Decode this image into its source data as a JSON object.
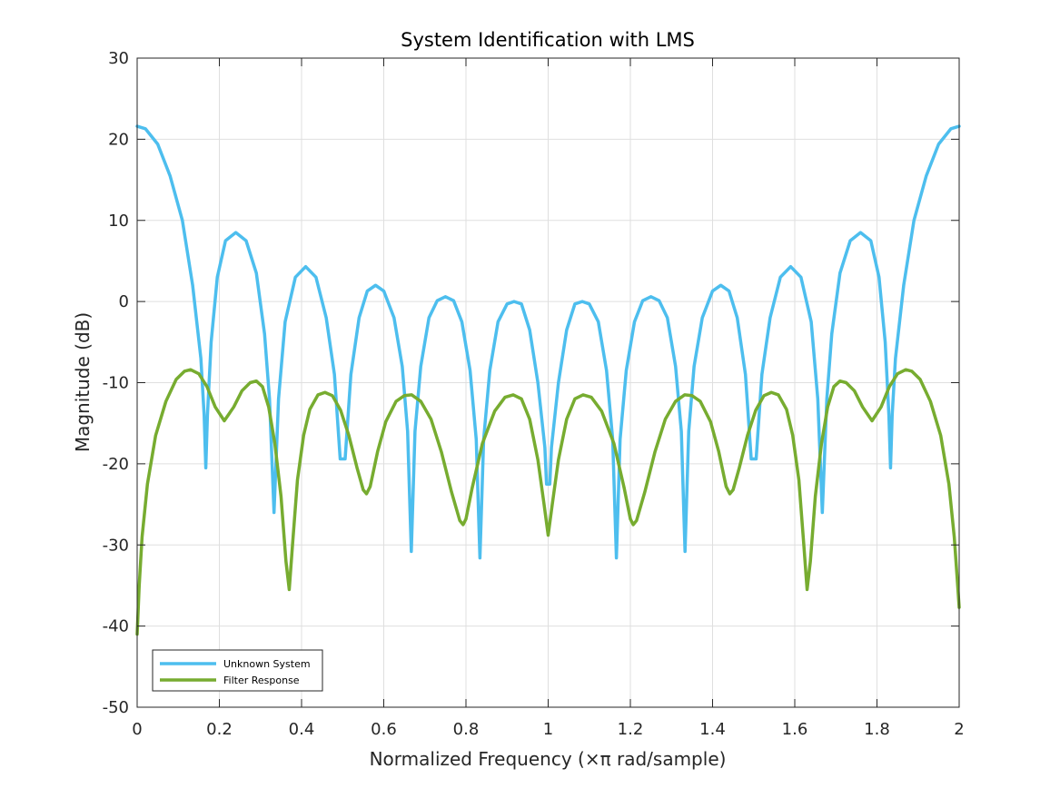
{
  "chart_data": {
    "type": "line",
    "title": "System Identification with LMS",
    "xlabel": "Normalized Frequency (×π rad/sample)",
    "ylabel": "Magnitude (dB)",
    "xlim": [
      0,
      2
    ],
    "ylim": [
      -50,
      30
    ],
    "grid": true,
    "legend_position": "bottom-left",
    "x_ticks": [
      0,
      0.2,
      0.4,
      0.6,
      0.8,
      1,
      1.2,
      1.4,
      1.6,
      1.8,
      2
    ],
    "x_tick_labels": [
      "0",
      "0.2",
      "0.4",
      "0.6",
      "0.8",
      "1",
      "1.2",
      "1.4",
      "1.6",
      "1.8",
      "2"
    ],
    "y_ticks": [
      -50,
      -40,
      -30,
      -20,
      -10,
      0,
      10,
      20,
      30
    ],
    "y_tick_labels": [
      "-50",
      "-40",
      "-30",
      "-20",
      "-10",
      "0",
      "10",
      "20",
      "30"
    ],
    "series": [
      {
        "name": "Unknown System",
        "color": "#4DBEEE",
        "points": [
          [
            0,
            21.6
          ],
          [
            0.02,
            21.3
          ],
          [
            0.05,
            19.4
          ],
          [
            0.08,
            15.5
          ],
          [
            0.11,
            10.0
          ],
          [
            0.135,
            2.0
          ],
          [
            0.155,
            -7.0
          ],
          [
            0.163,
            -14.0
          ],
          [
            0.167,
            -20.5
          ],
          [
            0.171,
            -14.0
          ],
          [
            0.18,
            -5.0
          ],
          [
            0.195,
            3.0
          ],
          [
            0.215,
            7.5
          ],
          [
            0.24,
            8.5
          ],
          [
            0.265,
            7.5
          ],
          [
            0.29,
            3.5
          ],
          [
            0.31,
            -4.0
          ],
          [
            0.322,
            -12.0
          ],
          [
            0.333,
            -26.0
          ],
          [
            0.344,
            -12.0
          ],
          [
            0.36,
            -2.5
          ],
          [
            0.385,
            3.0
          ],
          [
            0.41,
            4.3
          ],
          [
            0.435,
            3.0
          ],
          [
            0.46,
            -2.0
          ],
          [
            0.48,
            -9.0
          ],
          [
            0.494,
            -19.4
          ],
          [
            0.5,
            -19.4
          ],
          [
            0.506,
            -19.4
          ],
          [
            0.52,
            -9.0
          ],
          [
            0.54,
            -2.0
          ],
          [
            0.56,
            1.3
          ],
          [
            0.58,
            2.0
          ],
          [
            0.6,
            1.3
          ],
          [
            0.625,
            -2.0
          ],
          [
            0.645,
            -8.0
          ],
          [
            0.658,
            -16.0
          ],
          [
            0.667,
            -30.8
          ],
          [
            0.676,
            -16.0
          ],
          [
            0.69,
            -8.0
          ],
          [
            0.71,
            -2.0
          ],
          [
            0.73,
            0.1
          ],
          [
            0.75,
            0.6
          ],
          [
            0.77,
            0.1
          ],
          [
            0.79,
            -2.5
          ],
          [
            0.81,
            -8.5
          ],
          [
            0.825,
            -17.0
          ],
          [
            0.834,
            -31.6
          ],
          [
            0.843,
            -17.0
          ],
          [
            0.858,
            -8.5
          ],
          [
            0.878,
            -2.5
          ],
          [
            0.9,
            -0.3
          ],
          [
            0.917,
            0.0
          ],
          [
            0.935,
            -0.3
          ],
          [
            0.955,
            -3.5
          ],
          [
            0.975,
            -10.0
          ],
          [
            0.992,
            -18.0
          ],
          [
            0.996,
            -22.5
          ],
          [
            1.0,
            -22.5
          ],
          [
            1.004,
            -22.5
          ],
          [
            1.008,
            -18.0
          ],
          [
            1.025,
            -10.0
          ],
          [
            1.045,
            -3.5
          ],
          [
            1.065,
            -0.3
          ],
          [
            1.083,
            0.0
          ],
          [
            1.1,
            -0.3
          ],
          [
            1.122,
            -2.5
          ],
          [
            1.142,
            -8.5
          ],
          [
            1.157,
            -17.0
          ],
          [
            1.166,
            -31.6
          ],
          [
            1.175,
            -17.0
          ],
          [
            1.19,
            -8.5
          ],
          [
            1.21,
            -2.5
          ],
          [
            1.23,
            0.1
          ],
          [
            1.25,
            0.6
          ],
          [
            1.27,
            0.1
          ],
          [
            1.29,
            -2.0
          ],
          [
            1.31,
            -8.0
          ],
          [
            1.324,
            -16.0
          ],
          [
            1.333,
            -30.8
          ],
          [
            1.342,
            -16.0
          ],
          [
            1.355,
            -8.0
          ],
          [
            1.375,
            -2.0
          ],
          [
            1.4,
            1.3
          ],
          [
            1.42,
            2.0
          ],
          [
            1.44,
            1.3
          ],
          [
            1.46,
            -2.0
          ],
          [
            1.48,
            -9.0
          ],
          [
            1.494,
            -19.4
          ],
          [
            1.5,
            -19.4
          ],
          [
            1.506,
            -19.4
          ],
          [
            1.52,
            -9.0
          ],
          [
            1.54,
            -2.0
          ],
          [
            1.565,
            3.0
          ],
          [
            1.59,
            4.3
          ],
          [
            1.615,
            3.0
          ],
          [
            1.64,
            -2.5
          ],
          [
            1.656,
            -12.0
          ],
          [
            1.667,
            -26.0
          ],
          [
            1.678,
            -12.0
          ],
          [
            1.69,
            -4.0
          ],
          [
            1.71,
            3.5
          ],
          [
            1.735,
            7.5
          ],
          [
            1.76,
            8.5
          ],
          [
            1.785,
            7.5
          ],
          [
            1.805,
            3.0
          ],
          [
            1.82,
            -5.0
          ],
          [
            1.829,
            -14.0
          ],
          [
            1.833,
            -20.5
          ],
          [
            1.837,
            -14.0
          ],
          [
            1.845,
            -7.0
          ],
          [
            1.865,
            2.0
          ],
          [
            1.89,
            10.0
          ],
          [
            1.92,
            15.5
          ],
          [
            1.95,
            19.4
          ],
          [
            1.98,
            21.3
          ],
          [
            2.0,
            21.6
          ]
        ]
      },
      {
        "name": "Filter Response",
        "color": "#77AC30",
        "points": [
          [
            0,
            -41.0
          ],
          [
            0.005,
            -35.0
          ],
          [
            0.012,
            -29.0
          ],
          [
            0.025,
            -22.5
          ],
          [
            0.045,
            -16.5
          ],
          [
            0.07,
            -12.3
          ],
          [
            0.095,
            -9.6
          ],
          [
            0.115,
            -8.6
          ],
          [
            0.13,
            -8.4
          ],
          [
            0.15,
            -8.9
          ],
          [
            0.17,
            -10.5
          ],
          [
            0.19,
            -13.0
          ],
          [
            0.212,
            -14.7
          ],
          [
            0.235,
            -13.0
          ],
          [
            0.255,
            -11.0
          ],
          [
            0.275,
            -10.0
          ],
          [
            0.29,
            -9.8
          ],
          [
            0.305,
            -10.5
          ],
          [
            0.32,
            -13.0
          ],
          [
            0.335,
            -17.5
          ],
          [
            0.35,
            -24.0
          ],
          [
            0.362,
            -32.0
          ],
          [
            0.37,
            -35.5
          ],
          [
            0.378,
            -30.0
          ],
          [
            0.39,
            -22.0
          ],
          [
            0.405,
            -16.5
          ],
          [
            0.42,
            -13.3
          ],
          [
            0.44,
            -11.5
          ],
          [
            0.457,
            -11.2
          ],
          [
            0.475,
            -11.6
          ],
          [
            0.495,
            -13.4
          ],
          [
            0.515,
            -16.5
          ],
          [
            0.535,
            -20.5
          ],
          [
            0.55,
            -23.2
          ],
          [
            0.558,
            -23.7
          ],
          [
            0.567,
            -22.8
          ],
          [
            0.585,
            -18.5
          ],
          [
            0.605,
            -14.8
          ],
          [
            0.63,
            -12.3
          ],
          [
            0.65,
            -11.6
          ],
          [
            0.668,
            -11.5
          ],
          [
            0.69,
            -12.3
          ],
          [
            0.715,
            -14.5
          ],
          [
            0.74,
            -18.5
          ],
          [
            0.765,
            -23.5
          ],
          [
            0.785,
            -27.0
          ],
          [
            0.793,
            -27.5
          ],
          [
            0.8,
            -26.8
          ],
          [
            0.815,
            -23.0
          ],
          [
            0.84,
            -17.5
          ],
          [
            0.87,
            -13.5
          ],
          [
            0.895,
            -11.8
          ],
          [
            0.915,
            -11.5
          ],
          [
            0.935,
            -12.0
          ],
          [
            0.955,
            -14.5
          ],
          [
            0.975,
            -19.5
          ],
          [
            0.99,
            -25.0
          ],
          [
            1.0,
            -28.8
          ],
          [
            1.01,
            -25.0
          ],
          [
            1.025,
            -19.5
          ],
          [
            1.045,
            -14.5
          ],
          [
            1.065,
            -12.0
          ],
          [
            1.085,
            -11.5
          ],
          [
            1.105,
            -11.8
          ],
          [
            1.13,
            -13.5
          ],
          [
            1.16,
            -17.5
          ],
          [
            1.185,
            -23.0
          ],
          [
            1.2,
            -26.8
          ],
          [
            1.207,
            -27.5
          ],
          [
            1.215,
            -27.0
          ],
          [
            1.235,
            -23.5
          ],
          [
            1.26,
            -18.5
          ],
          [
            1.285,
            -14.5
          ],
          [
            1.31,
            -12.3
          ],
          [
            1.332,
            -11.5
          ],
          [
            1.35,
            -11.6
          ],
          [
            1.37,
            -12.3
          ],
          [
            1.395,
            -14.8
          ],
          [
            1.415,
            -18.5
          ],
          [
            1.433,
            -22.8
          ],
          [
            1.442,
            -23.7
          ],
          [
            1.45,
            -23.2
          ],
          [
            1.465,
            -20.5
          ],
          [
            1.485,
            -16.5
          ],
          [
            1.505,
            -13.4
          ],
          [
            1.525,
            -11.6
          ],
          [
            1.543,
            -11.2
          ],
          [
            1.56,
            -11.5
          ],
          [
            1.58,
            -13.3
          ],
          [
            1.595,
            -16.5
          ],
          [
            1.61,
            -22.0
          ],
          [
            1.622,
            -30.0
          ],
          [
            1.63,
            -35.5
          ],
          [
            1.638,
            -32.0
          ],
          [
            1.65,
            -24.0
          ],
          [
            1.665,
            -17.5
          ],
          [
            1.68,
            -13.0
          ],
          [
            1.695,
            -10.5
          ],
          [
            1.71,
            -9.8
          ],
          [
            1.725,
            -10.0
          ],
          [
            1.745,
            -11.0
          ],
          [
            1.765,
            -13.0
          ],
          [
            1.788,
            -14.7
          ],
          [
            1.81,
            -13.0
          ],
          [
            1.83,
            -10.5
          ],
          [
            1.85,
            -8.9
          ],
          [
            1.87,
            -8.4
          ],
          [
            1.885,
            -8.6
          ],
          [
            1.905,
            -9.6
          ],
          [
            1.93,
            -12.3
          ],
          [
            1.955,
            -16.5
          ],
          [
            1.975,
            -22.5
          ],
          [
            1.988,
            -29.0
          ],
          [
            1.995,
            -34.0
          ],
          [
            2.0,
            -37.7
          ]
        ]
      }
    ]
  }
}
